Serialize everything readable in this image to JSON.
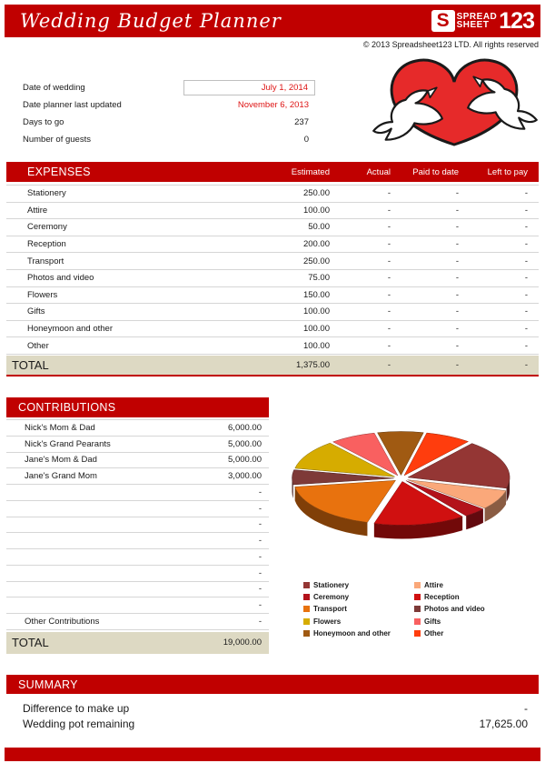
{
  "page": {
    "title": "Wedding Budget Planner",
    "copyright": "© 2013 Spreadsheet123 LTD. All rights reserved",
    "brand": {
      "s": "S",
      "spread": "SPREAD",
      "sheet": "SHEET",
      "num": "123"
    }
  },
  "info": {
    "rows": [
      {
        "label": "Date of wedding",
        "value": "July 1, 2014",
        "boxed": true,
        "red": true
      },
      {
        "label": "Date planner last updated",
        "value": "November 6, 2013",
        "boxed": false,
        "red": true
      },
      {
        "label": "Days to go",
        "value": "237",
        "boxed": false,
        "red": false
      },
      {
        "label": "Number of guests",
        "value": "0",
        "boxed": false,
        "red": false
      }
    ]
  },
  "expenses": {
    "title": "EXPENSES",
    "columns": [
      "Estimated",
      "Actual",
      "Paid to date",
      "Left to pay"
    ],
    "rows": [
      {
        "name": "Stationery",
        "estimated": "250.00",
        "actual": "-",
        "paid": "-",
        "left": "-"
      },
      {
        "name": "Attire",
        "estimated": "100.00",
        "actual": "-",
        "paid": "-",
        "left": "-"
      },
      {
        "name": "Ceremony",
        "estimated": "50.00",
        "actual": "-",
        "paid": "-",
        "left": "-"
      },
      {
        "name": "Reception",
        "estimated": "200.00",
        "actual": "-",
        "paid": "-",
        "left": "-"
      },
      {
        "name": "Transport",
        "estimated": "250.00",
        "actual": "-",
        "paid": "-",
        "left": "-"
      },
      {
        "name": "Photos and video",
        "estimated": "75.00",
        "actual": "-",
        "paid": "-",
        "left": "-"
      },
      {
        "name": "Flowers",
        "estimated": "150.00",
        "actual": "-",
        "paid": "-",
        "left": "-"
      },
      {
        "name": "Gifts",
        "estimated": "100.00",
        "actual": "-",
        "paid": "-",
        "left": "-"
      },
      {
        "name": "Honeymoon and other",
        "estimated": "100.00",
        "actual": "-",
        "paid": "-",
        "left": "-"
      },
      {
        "name": "Other",
        "estimated": "100.00",
        "actual": "-",
        "paid": "-",
        "left": "-"
      }
    ],
    "total": {
      "label": "TOTAL",
      "estimated": "1,375.00",
      "actual": "-",
      "paid": "-",
      "left": "-"
    }
  },
  "contributions": {
    "title": "CONTRIBUTIONS",
    "rows": [
      {
        "name": "Nick's Mom & Dad",
        "value": "6,000.00"
      },
      {
        "name": "Nick's Grand Pearants",
        "value": "5,000.00"
      },
      {
        "name": "Jane's Mom & Dad",
        "value": "5,000.00"
      },
      {
        "name": "Jane's Grand Mom",
        "value": "3,000.00"
      },
      {
        "name": "",
        "value": "-"
      },
      {
        "name": "",
        "value": "-"
      },
      {
        "name": "",
        "value": "-"
      },
      {
        "name": "",
        "value": "-"
      },
      {
        "name": "",
        "value": "-"
      },
      {
        "name": "",
        "value": "-"
      },
      {
        "name": "",
        "value": "-"
      },
      {
        "name": "",
        "value": "-"
      },
      {
        "name": "Other Contributions",
        "value": "-"
      }
    ],
    "total": {
      "label": "TOTAL",
      "value": "19,000.00"
    }
  },
  "chart_data": {
    "type": "pie",
    "style": "3d-exploded",
    "title": "",
    "categories": [
      "Stationery",
      "Attire",
      "Ceremony",
      "Reception",
      "Transport",
      "Photos and video",
      "Flowers",
      "Gifts",
      "Honeymoon and other",
      "Other"
    ],
    "values": [
      250,
      100,
      50,
      200,
      250,
      75,
      150,
      100,
      100,
      100
    ],
    "total": 1375,
    "colors": [
      "#943634",
      "#FAA87A",
      "#B3121B",
      "#D01010",
      "#E8720E",
      "#7E3A38",
      "#D6AC00",
      "#F96060",
      "#A05A12",
      "#FF3D0D"
    ],
    "rotation_deg": 39,
    "legend_position": "bottom-two-columns"
  },
  "summary": {
    "title": "SUMMARY",
    "rows": [
      {
        "label": "Difference to make up",
        "value": "-"
      },
      {
        "label": "Wedding pot remaining",
        "value": "17,625.00"
      }
    ]
  },
  "colors": {
    "accent_red": "#C00000",
    "value_red": "#DE1414",
    "total_row_bg": "#DDD9C3"
  }
}
